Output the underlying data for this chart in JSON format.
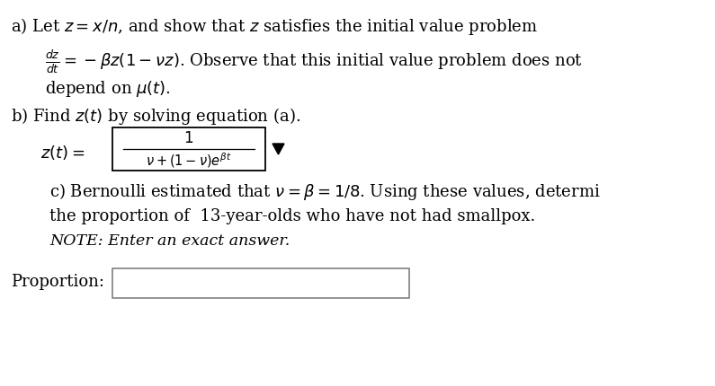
{
  "bg_color": "#ffffff",
  "text_color": "#000000",
  "fig_width": 7.95,
  "fig_height": 4.3,
  "dpi": 100,
  "line_a1": "a) Let $z = x/n$, and show that $z$ satisfies the initial value problem",
  "line_a2": "$\\frac{dz}{dt} = -\\beta z(1 - \\nu z)$. Observe that this initial value problem does not",
  "line_a3": "depend on $\\mu(t)$.",
  "line_b": "b) Find $z(t)$ by solving equation (a).",
  "line_zt_label": "$z(t) =$",
  "line_zt_formula_num": "$1$",
  "line_zt_formula_den": "$\\nu+(1-\\nu)e^{\\beta t}$",
  "line_c1": "c) Bernoulli estimated that $\\nu = \\beta = 1/8$. Using these values, determi",
  "line_c2": "the proportion of  13-year-olds who have not had smallpox.",
  "line_c3": "NOTE: Enter an exact answer.",
  "proportion_label": "Proportion:"
}
